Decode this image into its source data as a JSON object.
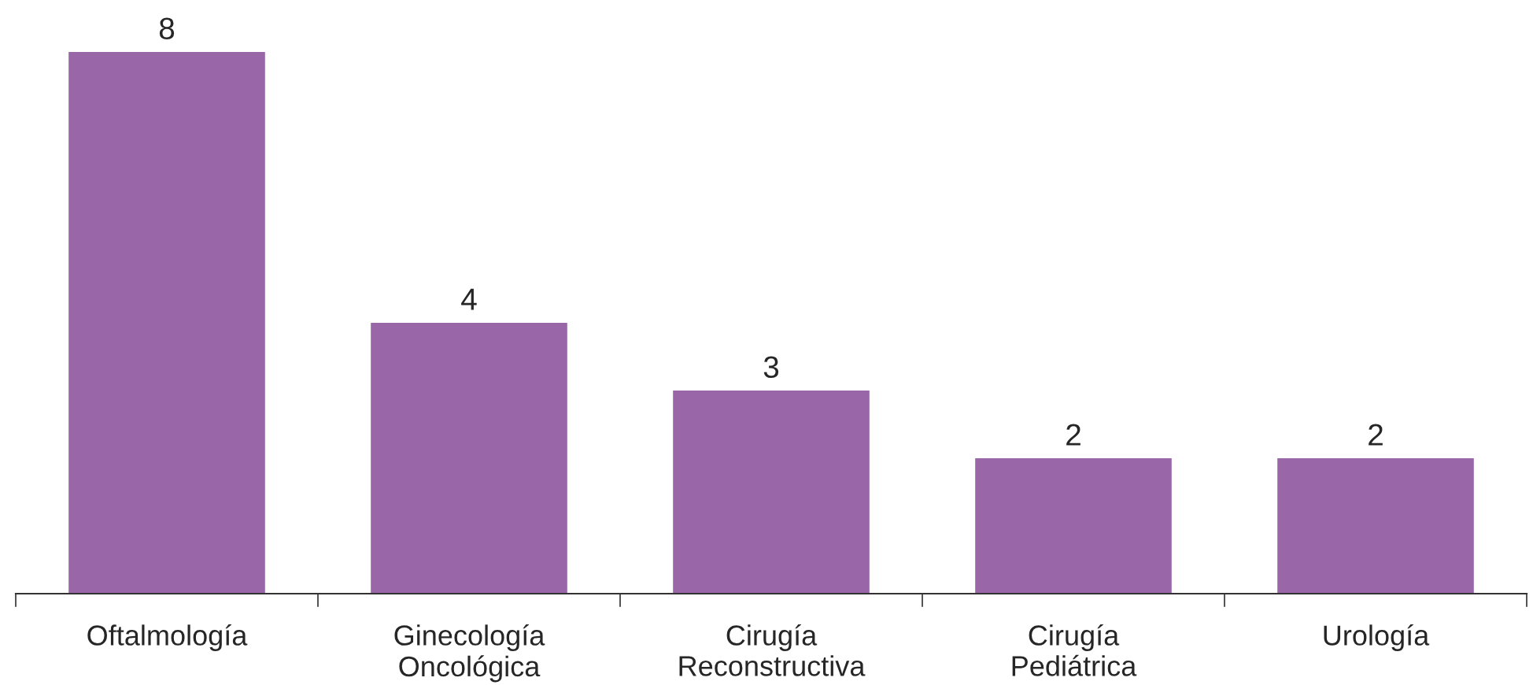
{
  "chart_data": {
    "type": "bar",
    "categories": [
      "Oftalmología",
      "Ginecología\nOncológica",
      "Cirugía\nReconstructiva",
      "Cirugía\nPediátrica",
      "Urología"
    ],
    "values": [
      8,
      4,
      3,
      2,
      2
    ],
    "color": "#9966a8",
    "data_labels": true,
    "grid": false,
    "legend": false
  }
}
